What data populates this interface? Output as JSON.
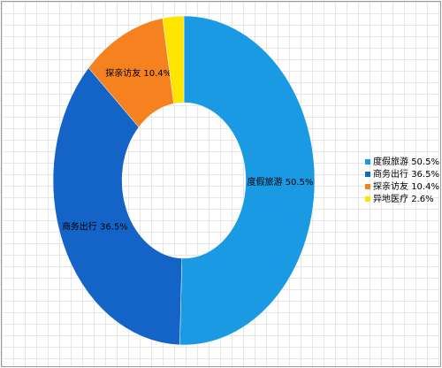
{
  "chart_data": {
    "type": "donut",
    "categories": [
      "度假旅游",
      "商务出行",
      "探亲访友",
      "异地医疗"
    ],
    "values": [
      50.5,
      36.5,
      10.4,
      2.6
    ],
    "value_labels": [
      "50.5%",
      "36.5%",
      "10.4%",
      "2.6%"
    ],
    "colors": [
      "#1b9ae4",
      "#1464c8",
      "#f5821f",
      "#ffe400"
    ],
    "legend": "right"
  }
}
